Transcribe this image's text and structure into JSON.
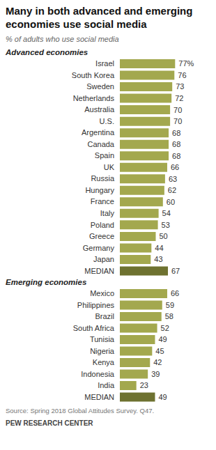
{
  "title": "Many in both advanced and emerging economies use social media",
  "subtitle": "% of adults who use social media",
  "source": "Source: Spring 2018 Global Attitudes Survey. Q47.",
  "credit": "PEW RESEARCH CENTER",
  "chart_data": [
    {
      "type": "bar",
      "orientation": "horizontal",
      "title": "Advanced economies",
      "categories": [
        "Israel",
        "South Korea",
        "Sweden",
        "Netherlands",
        "Australia",
        "U.S.",
        "Argentina",
        "Canada",
        "Spain",
        "UK",
        "Russia",
        "Hungary",
        "France",
        "Italy",
        "Poland",
        "Greece",
        "Germany",
        "Japan",
        "MEDIAN"
      ],
      "values": [
        77,
        76,
        73,
        72,
        70,
        70,
        68,
        68,
        68,
        66,
        63,
        62,
        60,
        54,
        53,
        50,
        44,
        43,
        67
      ],
      "value_labels": [
        "77%",
        "76",
        "73",
        "72",
        "70",
        "70",
        "68",
        "68",
        "68",
        "66",
        "63",
        "62",
        "60",
        "54",
        "53",
        "50",
        "44",
        "43",
        "67"
      ],
      "colors": [
        "#a3a84e",
        "#a3a84e",
        "#a3a84e",
        "#a3a84e",
        "#a3a84e",
        "#a3a84e",
        "#a3a84e",
        "#a3a84e",
        "#a3a84e",
        "#a3a84e",
        "#a3a84e",
        "#a3a84e",
        "#a3a84e",
        "#a3a84e",
        "#a3a84e",
        "#a3a84e",
        "#a3a84e",
        "#a3a84e",
        "#6e7230"
      ],
      "data_labels": true,
      "tick_labels": "y",
      "grid": false,
      "xlim": [
        0,
        100
      ]
    },
    {
      "type": "bar",
      "orientation": "horizontal",
      "title": "Emerging economies",
      "categories": [
        "Mexico",
        "Philippines",
        "Brazil",
        "South Africa",
        "Tunisia",
        "Nigeria",
        "Kenya",
        "Indonesia",
        "India",
        "MEDIAN"
      ],
      "values": [
        66,
        59,
        58,
        52,
        49,
        45,
        42,
        39,
        23,
        49
      ],
      "colors": [
        "#a3a84e",
        "#a3a84e",
        "#a3a84e",
        "#a3a84e",
        "#a3a84e",
        "#a3a84e",
        "#a3a84e",
        "#a3a84e",
        "#a3a84e",
        "#6e7230"
      ],
      "data_labels": true,
      "tick_labels": "y",
      "grid": false,
      "xlim": [
        0,
        100
      ]
    }
  ]
}
